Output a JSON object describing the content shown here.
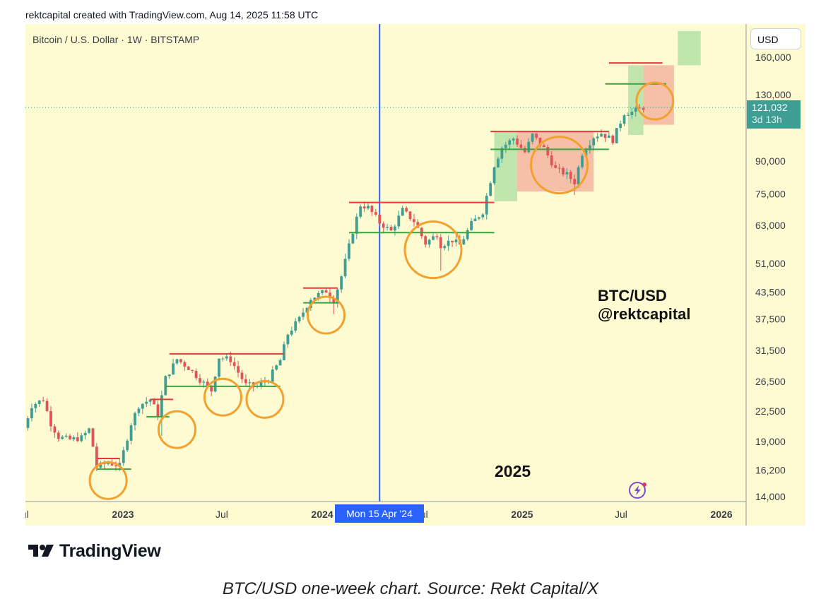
{
  "header": {
    "attribution": "rektcapital created with TradingView.com, Aug 14, 2025 11:58 UTC"
  },
  "chart": {
    "symbol_label": "Bitcoin / U.S. Dollar · 1W · BITSTAMP",
    "currency_button": "USD",
    "last_price_tag": "121,032",
    "countdown": "3d 13h",
    "watermark_line1": "BTC/USD",
    "watermark_line2": "@rektcapital",
    "year_annotation": "2025",
    "crosshair_date_label": "Mon 15 Apr '24"
  },
  "footer": {
    "logo_text": "TradingView",
    "caption": "BTC/USD one-week chart. Source: Rekt Capital/X"
  },
  "colors": {
    "background": "#fefbd3",
    "up_candle": "#3f9e93",
    "down_candle": "#e05458",
    "resistance": "#e8383b",
    "support": "#3aa43e",
    "circle": "#f2a12e",
    "vline": "#2962ff",
    "green_box": "#b9e3a8",
    "red_box": "#f5b9a3"
  },
  "chart_data": {
    "type": "candlestick",
    "scale": "log",
    "interval": "1W",
    "y_ticks": [
      160000,
      130000,
      90000,
      75000,
      63000,
      51000,
      43500,
      37500,
      31500,
      26500,
      22500,
      19000,
      16200,
      14000
    ],
    "y_tick_labels": [
      "160,000",
      "130,000",
      "90,000",
      "75,000",
      "63,000",
      "51,000",
      "43,500",
      "37,500",
      "31,500",
      "26,500",
      "22,500",
      "19,000",
      "16,200",
      "14,000"
    ],
    "x_ticks": [
      {
        "label": "Jul",
        "date": "2022-07-01"
      },
      {
        "label": "2023",
        "date": "2023-01-01"
      },
      {
        "label": "Jul",
        "date": "2023-07-01"
      },
      {
        "label": "2024",
        "date": "2024-01-01"
      },
      {
        "label": "Jul",
        "date": "2024-07-01"
      },
      {
        "label": "2025",
        "date": "2025-01-01"
      },
      {
        "label": "Jul",
        "date": "2025-07-01"
      },
      {
        "label": "2026",
        "date": "2026-01-01"
      }
    ],
    "last_price": 121032,
    "highlighted_date": "2024-04-15",
    "path_points": [
      [
        "2022-07-04",
        20500
      ],
      [
        "2022-07-18",
        23200
      ],
      [
        "2022-08-08",
        24000
      ],
      [
        "2022-08-22",
        21000
      ],
      [
        "2022-09-05",
        19500
      ],
      [
        "2022-09-26",
        19200
      ],
      [
        "2022-10-17",
        19400
      ],
      [
        "2022-11-01",
        20400
      ],
      [
        "2022-11-14",
        16500
      ],
      [
        "2022-12-05",
        16900
      ],
      [
        "2022-12-26",
        16600
      ],
      [
        "2023-01-16",
        21000
      ],
      [
        "2023-01-30",
        23200
      ],
      [
        "2023-02-20",
        24000
      ],
      [
        "2023-03-06",
        22100
      ],
      [
        "2023-03-20",
        27000
      ],
      [
        "2023-04-10",
        30000
      ],
      [
        "2023-05-01",
        28600
      ],
      [
        "2023-05-22",
        26800
      ],
      [
        "2023-06-12",
        25200
      ],
      [
        "2023-06-26",
        30300
      ],
      [
        "2023-07-17",
        29900
      ],
      [
        "2023-08-14",
        26000
      ],
      [
        "2023-09-04",
        25800
      ],
      [
        "2023-09-25",
        26900
      ],
      [
        "2023-10-16",
        29800
      ],
      [
        "2023-10-30",
        34500
      ],
      [
        "2023-11-20",
        37500
      ],
      [
        "2023-12-11",
        42000
      ],
      [
        "2024-01-08",
        43800
      ],
      [
        "2024-01-22",
        41500
      ],
      [
        "2024-02-05",
        47500
      ],
      [
        "2024-02-26",
        61000
      ],
      [
        "2024-03-11",
        70500
      ],
      [
        "2024-03-25",
        69500
      ],
      [
        "2024-04-15",
        64000
      ],
      [
        "2024-05-06",
        61000
      ],
      [
        "2024-05-27",
        68500
      ],
      [
        "2024-06-17",
        64500
      ],
      [
        "2024-07-08",
        57000
      ],
      [
        "2024-07-29",
        60000
      ],
      [
        "2024-08-05",
        56500
      ],
      [
        "2024-08-26",
        58000
      ],
      [
        "2024-09-09",
        56500
      ],
      [
        "2024-09-30",
        63500
      ],
      [
        "2024-10-21",
        68000
      ],
      [
        "2024-11-11",
        88000
      ],
      [
        "2024-11-25",
        97000
      ],
      [
        "2024-12-16",
        102000
      ],
      [
        "2025-01-06",
        94500
      ],
      [
        "2025-01-20",
        104000
      ],
      [
        "2025-02-10",
        96500
      ],
      [
        "2025-03-03",
        86000
      ],
      [
        "2025-03-24",
        83500
      ],
      [
        "2025-04-07",
        80000
      ],
      [
        "2025-04-21",
        94000
      ],
      [
        "2025-05-12",
        103000
      ],
      [
        "2025-05-26",
        105000
      ],
      [
        "2025-06-16",
        101000
      ],
      [
        "2025-07-07",
        117500
      ],
      [
        "2025-07-21",
        118000
      ],
      [
        "2025-08-11",
        121032
      ]
    ],
    "wick_spikes": [
      {
        "date": "2023-03-13",
        "low": 19600
      },
      {
        "date": "2024-01-22",
        "low": 38500
      },
      {
        "date": "2024-08-05",
        "low": 49000
      },
      {
        "date": "2025-04-07",
        "low": 74500
      }
    ],
    "resistance_lines": [
      {
        "from": "2022-11-14",
        "to": "2022-12-26",
        "price": 17300
      },
      {
        "from": "2023-02-20",
        "to": "2023-04-03",
        "price": 24000
      },
      {
        "from": "2023-03-27",
        "to": "2023-10-23",
        "price": 30900
      },
      {
        "from": "2023-11-27",
        "to": "2024-01-29",
        "price": 44500
      },
      {
        "from": "2024-02-19",
        "to": "2024-11-11",
        "price": 71500
      },
      {
        "from": "2024-11-04",
        "to": "2025-06-09",
        "price": 106000
      },
      {
        "from": "2025-06-09",
        "to": "2025-09-15",
        "price": 155000
      }
    ],
    "support_lines": [
      {
        "from": "2022-11-14",
        "to": "2023-01-16",
        "price": 16300
      },
      {
        "from": "2023-02-13",
        "to": "2023-03-27",
        "price": 21800
      },
      {
        "from": "2023-03-20",
        "to": "2023-10-16",
        "price": 25800
      },
      {
        "from": "2023-11-27",
        "to": "2024-01-29",
        "price": 41000
      },
      {
        "from": "2024-02-19",
        "to": "2024-11-11",
        "price": 60500
      },
      {
        "from": "2024-11-04",
        "to": "2025-06-09",
        "price": 96000
      },
      {
        "from": "2025-06-02",
        "to": "2025-09-22",
        "price": 138000
      }
    ],
    "green_zones": [
      {
        "from": "2024-11-11",
        "to": "2024-12-23",
        "low": 72000,
        "high": 106000
      },
      {
        "from": "2025-07-14",
        "to": "2025-08-11",
        "low": 104000,
        "high": 153000
      },
      {
        "from": "2025-10-13",
        "to": "2025-11-24",
        "low": 153000,
        "high": 185000
      }
    ],
    "red_zones": [
      {
        "from": "2024-12-23",
        "to": "2025-05-12",
        "low": 76000,
        "high": 106000
      },
      {
        "from": "2025-08-11",
        "to": "2025-10-06",
        "low": 110000,
        "high": 153000
      }
    ],
    "circled_retests": [
      {
        "date": "2022-12-05",
        "price": 15300
      },
      {
        "date": "2023-04-10",
        "price": 20300
      },
      {
        "date": "2023-07-03",
        "price": 24300
      },
      {
        "date": "2023-09-18",
        "price": 24000
      },
      {
        "date": "2024-01-08",
        "price": 38300
      },
      {
        "date": "2024-07-22",
        "price": 55000
      },
      {
        "date": "2025-03-10",
        "price": 88000
      },
      {
        "date": "2025-09-01",
        "price": 125500
      }
    ]
  }
}
